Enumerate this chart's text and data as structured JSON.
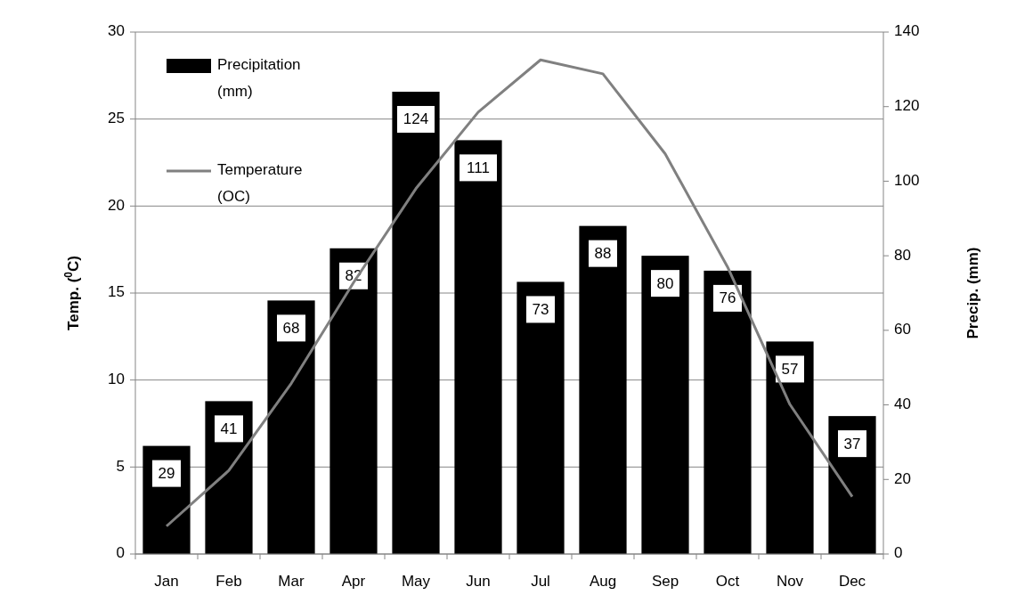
{
  "chart_data": {
    "type": "bar",
    "categories": [
      "Jan",
      "Feb",
      "Mar",
      "Apr",
      "May",
      "Jun",
      "Jul",
      "Aug",
      "Sep",
      "Oct",
      "Nov",
      "Dec"
    ],
    "series": [
      {
        "name": "Precipitation (mm)",
        "axis": "y2",
        "color": "#000000",
        "values": [
          29,
          41,
          68,
          82,
          124,
          111,
          73,
          88,
          80,
          76,
          57,
          37
        ],
        "value_labels": [
          "29",
          "41",
          "68",
          "82",
          "124",
          "111",
          "73",
          "88",
          "80",
          "76",
          "57",
          "37"
        ]
      },
      {
        "name": "Temperature (OC)",
        "type": "line",
        "axis": "y",
        "color": "#808080",
        "values": [
          1.6,
          4.8,
          9.8,
          15.6,
          21.0,
          25.4,
          28.4,
          27.6,
          23.0,
          16.5,
          8.6,
          3.3
        ]
      }
    ],
    "ylabel": "Temp. ($^{0}$C)",
    "y2label": "Precip. (mm)",
    "ylim": [
      0,
      30
    ],
    "yticks": [
      0,
      5,
      10,
      15,
      20,
      25,
      30
    ],
    "y2lim": [
      0,
      140
    ],
    "y2ticks": [
      0,
      20,
      40,
      60,
      80,
      100,
      120,
      140
    ],
    "grid": "y",
    "legend": "top left",
    "marker": "none",
    "line_style": "solid"
  }
}
